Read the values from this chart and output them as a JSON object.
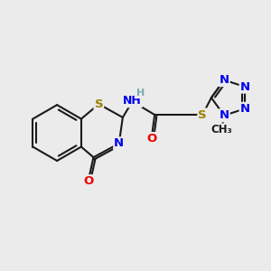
{
  "bg_color": "#ebebeb",
  "bond_color": "#1a1a1a",
  "bond_width": 1.5,
  "atom_colors": {
    "S": "#9a8000",
    "N": "#0000ee",
    "O": "#ee0000",
    "H": "#7aabab",
    "C": "#1a1a1a"
  },
  "font_size": 9.5,
  "font_size_small": 8.5
}
